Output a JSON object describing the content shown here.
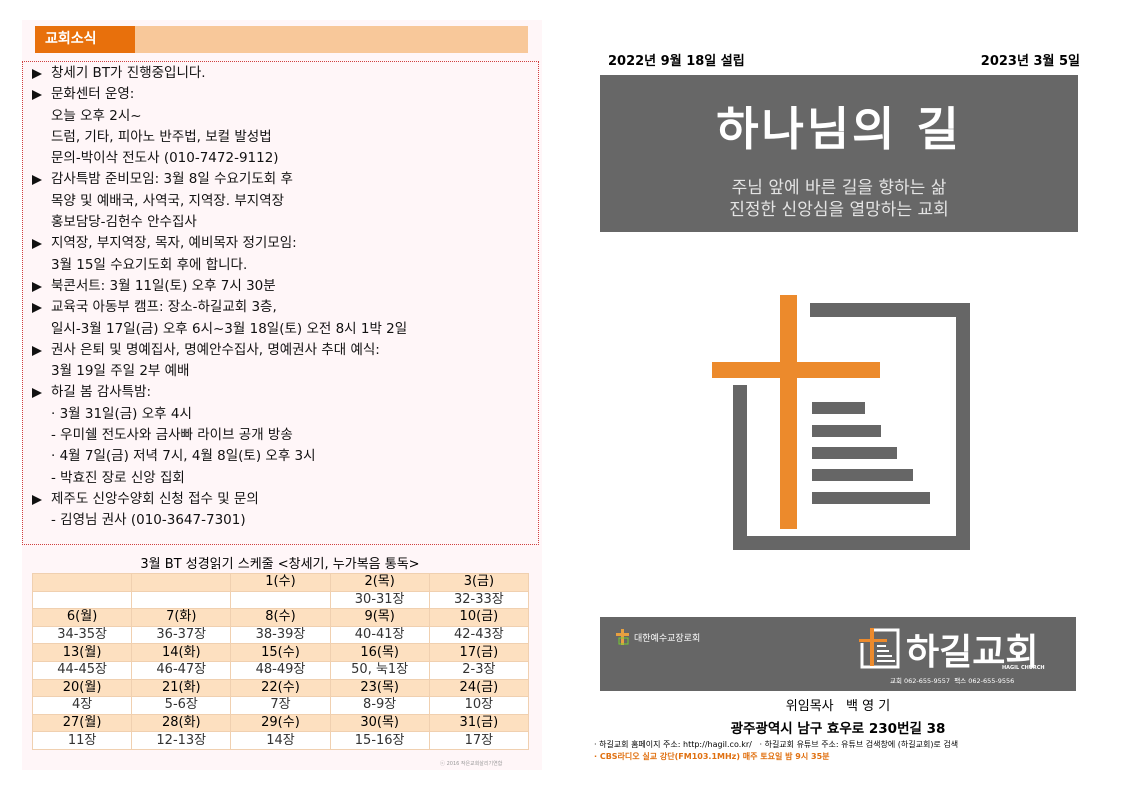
{
  "left": {
    "section_title": "교회소식",
    "news": [
      [
        "창세기 BT가 진행중입니다."
      ],
      [
        "문화센터 운영:",
        "오늘 오후 2시~",
        "드럼, 기타, 피아노 반주법, 보컬 발성법",
        "문의-박이삭 전도사 (010-7472-9112)"
      ],
      [
        "감사특밤 준비모임: 3월 8일 수요기도회 후",
        "목양 및 예배국, 사역국, 지역장. 부지역장",
        "홍보담당-김헌수 안수집사"
      ],
      [
        "지역장, 부지역장, 목자, 예비목자 정기모임:",
        "3월 15일 수요기도회 후에 합니다."
      ],
      [
        "북콘서트: 3월 11일(토) 오후 7시 30분"
      ],
      [
        "교육국 아동부 캠프: 장소-하길교회 3층,",
        "일시-3월 17일(금) 오후 6시~3월 18일(토) 오전 8시 1박 2일"
      ],
      [
        "권사 은퇴 및 명예집사, 명예안수집사, 명예권사 추대 예식:",
        "3월 19일 주일 2부 예배"
      ],
      [
        "하길 봄 감사특밤:",
        "· 3월 31일(금) 오후 4시",
        "- 우미쉘 전도사와 금사빠 라이브 공개 방송",
        "· 4월 7일(금) 저녁 7시, 4월 8일(토) 오후 3시",
        "- 박효진 장로 신앙 집회"
      ],
      [
        "제주도 신앙수양회 신청 접수 및 문의",
        "- 김영님 권사 (010-3647-7301)"
      ]
    ],
    "schedule": {
      "title": "3월 BT 성경읽기 스케줄 <창세기, 누가복음 통독>",
      "weeks": [
        {
          "days": [
            null,
            null,
            "1(수)",
            "2(목)",
            "3(금)"
          ],
          "readings": [
            null,
            null,
            null,
            "30-31장",
            "32-33장"
          ]
        },
        {
          "days": [
            "6(월)",
            "7(화)",
            "8(수)",
            "9(목)",
            "10(금)"
          ],
          "readings": [
            "34-35장",
            "36-37장",
            "38-39장",
            "40-41장",
            "42-43장"
          ]
        },
        {
          "days": [
            "13(월)",
            "14(화)",
            "15(수)",
            "16(목)",
            "17(금)"
          ],
          "readings": [
            "44-45장",
            "46-47장",
            "48-49장",
            "50, 눅1장",
            "2-3장"
          ]
        },
        {
          "days": [
            "20(월)",
            "21(화)",
            "22(수)",
            "23(목)",
            "24(금)"
          ],
          "readings": [
            "4장",
            "5-6장",
            "7장",
            "8-9장",
            "10장"
          ]
        },
        {
          "days": [
            "27(월)",
            "28(화)",
            "29(수)",
            "30(목)",
            "31(금)"
          ],
          "readings": [
            "11장",
            "12-13장",
            "14장",
            "15-16장",
            "17장"
          ]
        }
      ],
      "credit": "ⓒ 2016 작은교회살리기연합"
    }
  },
  "right": {
    "founded": "2022년 9월 18일 설립",
    "date": "2023년 3월 5일",
    "title": "하나님의 길",
    "subtitle": [
      "주님 앞에 바른 길을 향하는 삶",
      "진정한 신앙심을 열망하는 교회"
    ],
    "banner": {
      "denomination": "대한예수교장로회",
      "church_name": "하길교회",
      "english_name": "HAGIL CHURCH",
      "contact": "교회 062-655-9557  팩스 062-655-9556"
    },
    "pastor": "위임목사   백 영 기",
    "address": "광주광역시 남구 효우로 230번길 38",
    "notes": [
      "· 하길교회 홈페이지 주소: http://hagil.co.kr/   · 하길교회 유튜브 주소: 유튜브 검색창에 (하길교회)로 검색",
      "· CBS라디오 실교 강단(FM103.1MHz) 매주 토요일 밤 9시 35분"
    ]
  }
}
